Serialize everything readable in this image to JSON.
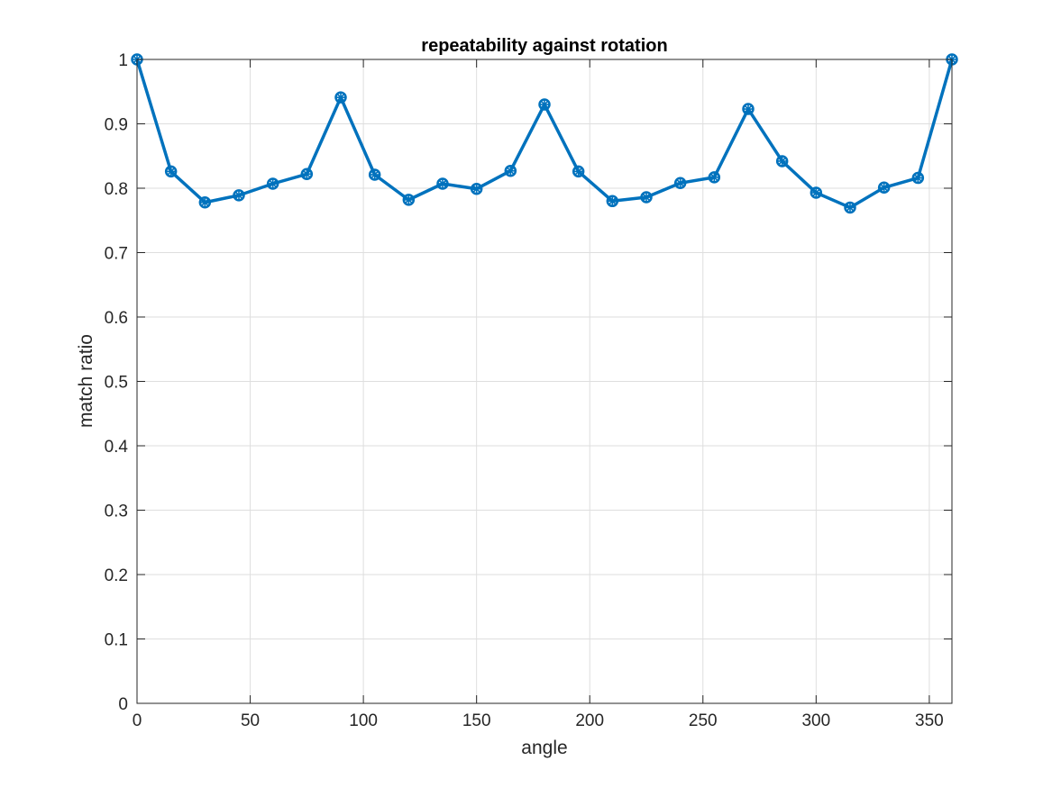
{
  "chart_data": {
    "type": "line",
    "title": "repeatability against rotation",
    "xlabel": "angle",
    "ylabel": "match ratio",
    "xlim": [
      0,
      360
    ],
    "ylim": [
      0,
      1
    ],
    "xticks": [
      0,
      50,
      100,
      150,
      200,
      250,
      300,
      350
    ],
    "yticks": [
      0,
      0.1,
      0.2,
      0.3,
      0.4,
      0.5,
      0.6,
      0.7,
      0.8,
      0.9,
      1
    ],
    "grid": true,
    "series": [
      {
        "color": "#0072BD",
        "marker": "circle-star",
        "x": [
          0,
          15,
          30,
          45,
          60,
          75,
          90,
          105,
          120,
          135,
          150,
          165,
          180,
          195,
          210,
          225,
          240,
          255,
          270,
          285,
          300,
          315,
          330,
          345,
          360
        ],
        "y": [
          1.0,
          0.826,
          0.778,
          0.789,
          0.807,
          0.822,
          0.941,
          0.821,
          0.782,
          0.807,
          0.799,
          0.827,
          0.93,
          0.826,
          0.78,
          0.786,
          0.808,
          0.817,
          0.923,
          0.842,
          0.793,
          0.77,
          0.801,
          0.816,
          1.0
        ]
      }
    ]
  }
}
